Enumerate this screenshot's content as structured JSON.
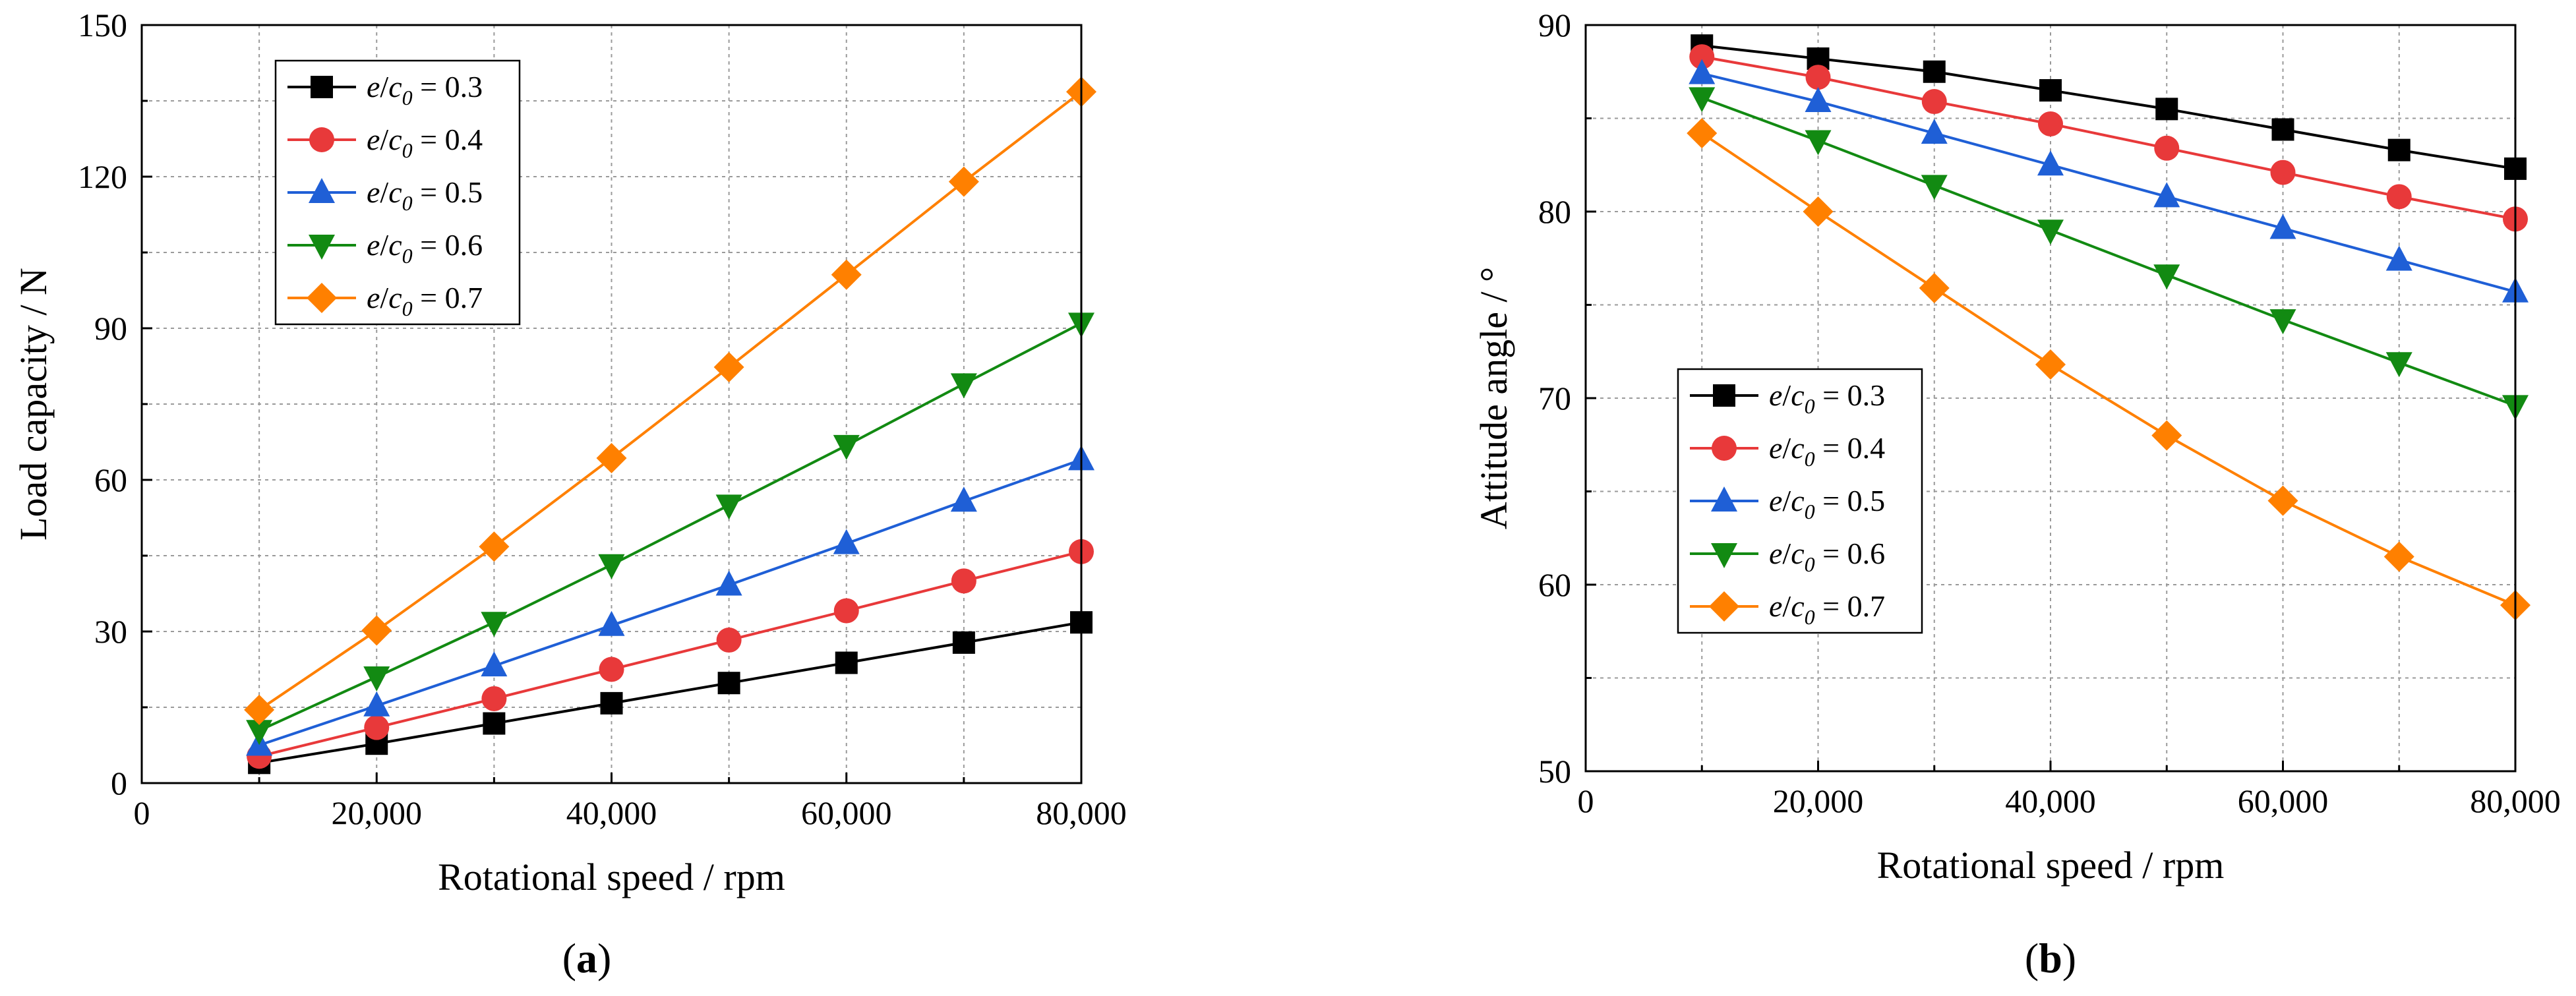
{
  "chart_data": [
    {
      "type": "line",
      "panel_label_prefix": "(",
      "panel_label_letter": "a",
      "panel_label_suffix": ")",
      "xlabel": "Rotational speed / rpm",
      "ylabel": "Load capacity / N",
      "xlim": [
        0,
        80000
      ],
      "ylim": [
        0,
        150
      ],
      "xticks": [
        0,
        20000,
        40000,
        60000,
        80000
      ],
      "xtick_labels": [
        "0",
        "20,000",
        "40,000",
        "60,000",
        "80,000"
      ],
      "yticks": [
        0,
        30,
        60,
        90,
        120,
        150
      ],
      "ytick_labels": [
        "0",
        "30",
        "60",
        "90",
        "120",
        "150"
      ],
      "grid": true,
      "legend_position": "top-left",
      "x": [
        10000,
        20000,
        30000,
        40000,
        50000,
        60000,
        70000,
        80000
      ],
      "series": [
        {
          "name": "e/c0 = 0.3",
          "legend_value": "0.3",
          "color": "#000000",
          "marker": "square",
          "values": [
            4.0,
            7.8,
            11.8,
            15.8,
            19.8,
            23.8,
            27.8,
            31.8
          ]
        },
        {
          "name": "e/c0 = 0.4",
          "legend_value": "0.4",
          "color": "#e8393a",
          "marker": "circle",
          "values": [
            5.3,
            11.0,
            16.7,
            22.5,
            28.3,
            34.1,
            40.0,
            45.8
          ]
        },
        {
          "name": "e/c0 = 0.5",
          "legend_value": "0.5",
          "color": "#1f5fd6",
          "marker": "triangle-up",
          "values": [
            7.5,
            15.3,
            23.2,
            31.2,
            39.2,
            47.4,
            55.8,
            64.0
          ]
        },
        {
          "name": "e/c0 = 0.6",
          "legend_value": "0.6",
          "color": "#128a12",
          "marker": "triangle-down",
          "values": [
            10.4,
            21.0,
            31.8,
            43.2,
            55.0,
            66.8,
            79.0,
            91.0
          ]
        },
        {
          "name": "e/c0 = 0.7",
          "legend_value": "0.7",
          "color": "#ff8000",
          "marker": "diamond",
          "values": [
            14.5,
            30.2,
            46.8,
            64.3,
            82.3,
            100.6,
            119.0,
            136.8
          ]
        }
      ]
    },
    {
      "type": "line",
      "panel_label_prefix": "(",
      "panel_label_letter": "b",
      "panel_label_suffix": ")",
      "xlabel": "Rotational speed / rpm",
      "ylabel": "Attitude angle / °",
      "xlim": [
        0,
        80000
      ],
      "ylim": [
        50,
        90
      ],
      "xticks": [
        0,
        20000,
        40000,
        60000,
        80000
      ],
      "xtick_labels": [
        "0",
        "20,000",
        "40,000",
        "60,000",
        "80,000"
      ],
      "yticks": [
        50,
        60,
        70,
        80,
        90
      ],
      "ytick_labels": [
        "50",
        "60",
        "70",
        "80",
        "90"
      ],
      "grid": true,
      "legend_position": "center-left",
      "x": [
        10000,
        20000,
        30000,
        40000,
        50000,
        60000,
        70000,
        80000
      ],
      "series": [
        {
          "name": "e/c0 = 0.3",
          "legend_value": "0.3",
          "color": "#000000",
          "marker": "square",
          "values": [
            88.9,
            88.2,
            87.5,
            86.5,
            85.5,
            84.4,
            83.3,
            82.3
          ]
        },
        {
          "name": "e/c0 = 0.4",
          "legend_value": "0.4",
          "color": "#e8393a",
          "marker": "circle",
          "values": [
            88.3,
            87.2,
            85.9,
            84.7,
            83.4,
            82.1,
            80.8,
            79.6
          ]
        },
        {
          "name": "e/c0 = 0.5",
          "legend_value": "0.5",
          "color": "#1f5fd6",
          "marker": "triangle-up",
          "values": [
            87.4,
            85.9,
            84.2,
            82.5,
            80.8,
            79.1,
            77.4,
            75.7
          ]
        },
        {
          "name": "e/c0 = 0.6",
          "legend_value": "0.6",
          "color": "#128a12",
          "marker": "triangle-down",
          "values": [
            86.1,
            83.8,
            81.4,
            79.0,
            76.6,
            74.2,
            71.9,
            69.6
          ]
        },
        {
          "name": "e/c0 = 0.7",
          "legend_value": "0.7",
          "color": "#ff8000",
          "marker": "diamond",
          "values": [
            84.2,
            80.0,
            75.9,
            71.8,
            68.0,
            64.5,
            61.5,
            58.9
          ]
        }
      ]
    }
  ]
}
